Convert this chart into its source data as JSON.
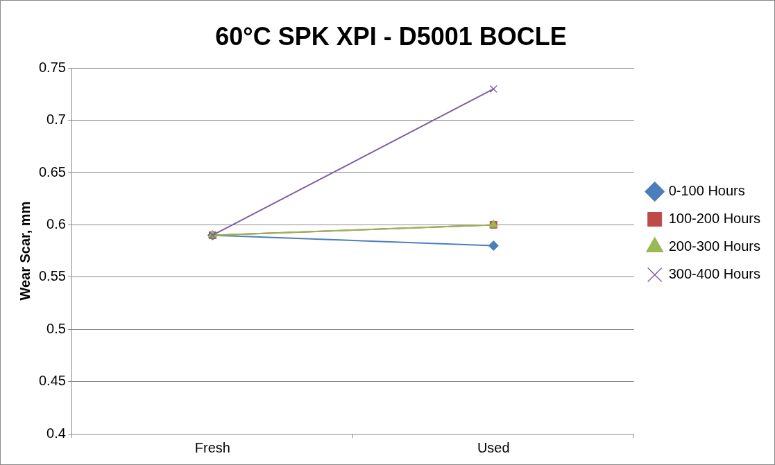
{
  "chart_data": {
    "type": "line",
    "title": "60°C SPK XPI - D5001 BOCLE",
    "ylabel": "Wear Scar, mm",
    "categories": [
      "Fresh",
      "Used"
    ],
    "series": [
      {
        "name": "0-100 Hours",
        "color": "#4a7ebb",
        "marker": "diamond",
        "values": [
          0.59,
          0.58
        ]
      },
      {
        "name": "100-200 Hours",
        "color": "#be4b48",
        "marker": "square",
        "values": [
          0.59,
          0.6
        ]
      },
      {
        "name": "200-300 Hours",
        "color": "#98b954",
        "marker": "triangle",
        "values": [
          0.59,
          0.6
        ]
      },
      {
        "name": "300-400 Hours",
        "color": "#7d60a0",
        "marker": "cross",
        "values": [
          0.59,
          0.73
        ]
      }
    ],
    "ylim": [
      0.4,
      0.75
    ],
    "yticks": [
      0.4,
      0.45,
      0.5,
      0.55,
      0.6,
      0.65,
      0.7,
      0.75
    ],
    "grid": "y",
    "legend": "right"
  }
}
